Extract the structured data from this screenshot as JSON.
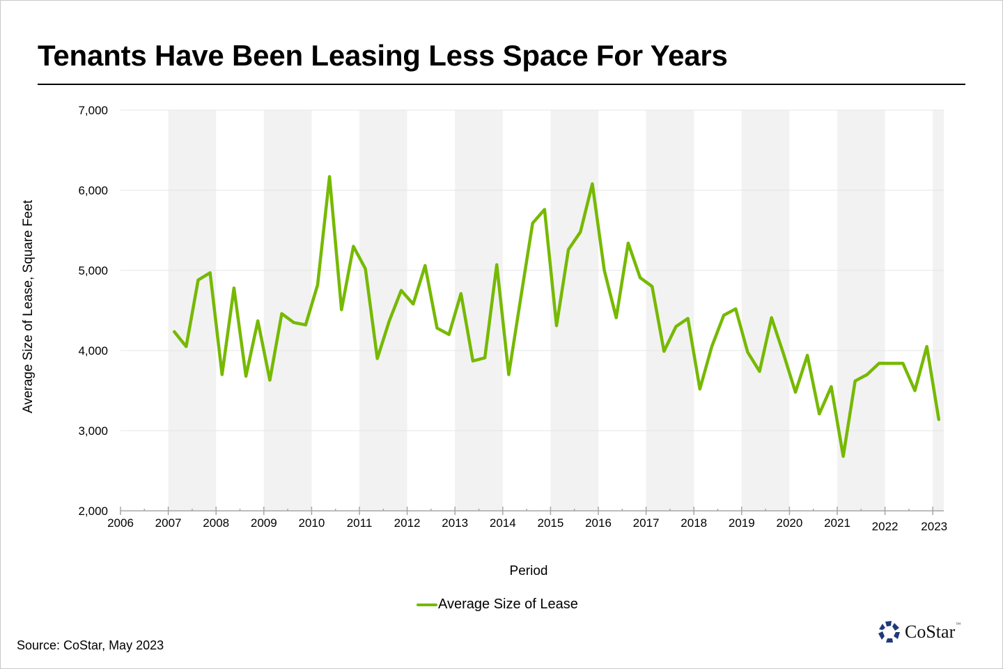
{
  "title": "Tenants Have Been Leasing Less Space For Years",
  "source": "Source: CoStar, May 2023",
  "logo": {
    "name": "CoStar",
    "tm": "™",
    "color": "#1e3a7b"
  },
  "colors": {
    "series": "#76b900",
    "band": "#f2f2f2",
    "grid": "#e4e4e4",
    "axis": "#a6a6a6"
  },
  "chart_data": {
    "type": "line",
    "title": "Tenants Have Been Leasing Less Space For Years",
    "xlabel": "Period",
    "ylabel": "Average Size of Lease, Square Feet",
    "ylim": [
      2000,
      7000
    ],
    "xlim": [
      2006,
      2023.25
    ],
    "yticks": [
      2000,
      3000,
      4000,
      5000,
      6000,
      7000
    ],
    "ytick_labels": [
      "2,000",
      "3,000",
      "4,000",
      "5,000",
      "6,000",
      "7,000"
    ],
    "xticks": [
      2006,
      2007,
      2008,
      2009,
      2010,
      2011,
      2012,
      2013,
      2014,
      2015,
      2016,
      2017,
      2018,
      2019,
      2020,
      2021,
      2022,
      2023
    ],
    "xtick_labels": [
      "2006",
      "2007",
      "2008",
      "2009",
      "2010",
      "2011",
      "2012",
      "2013",
      "2014",
      "2015",
      "2016",
      "2017",
      "2018",
      "2019",
      "2020",
      "2021",
      "2022",
      "2023"
    ],
    "grid": true,
    "alternating_year_bands": true,
    "legend": {
      "position": "bottom-center",
      "entries": [
        "Average Size of Lease"
      ]
    },
    "start_period": 2007.125,
    "period_step": 0.25,
    "series": [
      {
        "name": "Average Size of Lease",
        "color": "#76b900",
        "values": [
          4235,
          4050,
          4880,
          4970,
          3700,
          4780,
          3680,
          4370,
          3630,
          4460,
          4350,
          4320,
          4820,
          6170,
          4510,
          5300,
          5020,
          3900,
          4370,
          4750,
          4580,
          5060,
          4280,
          4200,
          4710,
          3870,
          3910,
          5070,
          3700,
          4650,
          5590,
          5760,
          4310,
          5260,
          5480,
          6080,
          5000,
          4410,
          5340,
          4910,
          4800,
          3990,
          4300,
          4400,
          3520,
          4050,
          4440,
          4520,
          3980,
          3740,
          4410,
          3960,
          3480,
          3940,
          3210,
          3550,
          2680,
          3620,
          3700,
          3840,
          3840,
          3840,
          3500,
          4050,
          3140
        ]
      }
    ]
  }
}
